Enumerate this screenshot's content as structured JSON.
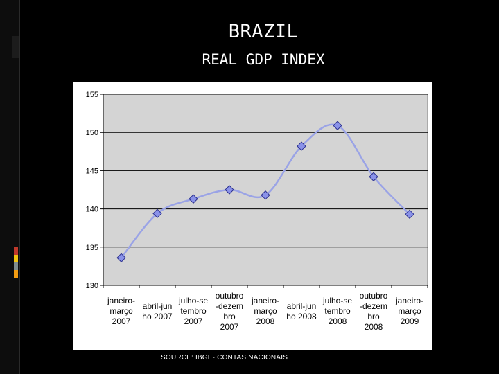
{
  "slide": {
    "title": "BRAZIL",
    "subtitle": "REAL GDP INDEX",
    "source": "SOURCE: IBGE- CONTAS NACIONAIS"
  },
  "colors": {
    "background": "#000000",
    "plot_area": "#d4d4d4",
    "line": "#9aa3e6",
    "marker_fill": "#8a92e8",
    "marker_stroke": "#2a2f8f",
    "grid": "#000000",
    "accent_stripes": [
      "#c0392b",
      "#f1c40f",
      "#7f8c8d",
      "#f39c12"
    ]
  },
  "chart_data": {
    "type": "line",
    "title": "",
    "xlabel": "",
    "ylabel": "",
    "ylim": [
      130,
      155
    ],
    "yticks": [
      130,
      135,
      140,
      145,
      150,
      155
    ],
    "grid": true,
    "smooth": true,
    "categories": [
      [
        "janeiro-",
        "março",
        "2007"
      ],
      [
        "abril-jun",
        "ho 2007"
      ],
      [
        "julho-se",
        "tembro",
        "2007"
      ],
      [
        "outubro",
        "-dezem",
        "bro",
        "2007"
      ],
      [
        "janeiro-",
        "março",
        "2008"
      ],
      [
        "abril-jun",
        "ho 2008"
      ],
      [
        "julho-se",
        "tembro",
        "2008"
      ],
      [
        "outubro",
        "-dezem",
        "bro",
        "2008"
      ],
      [
        "janeiro-",
        "março",
        "2009"
      ]
    ],
    "series": [
      {
        "name": "Real GDP Index",
        "values": [
          133.6,
          139.4,
          141.3,
          142.5,
          141.8,
          148.2,
          150.9,
          144.2,
          139.3
        ]
      }
    ]
  }
}
